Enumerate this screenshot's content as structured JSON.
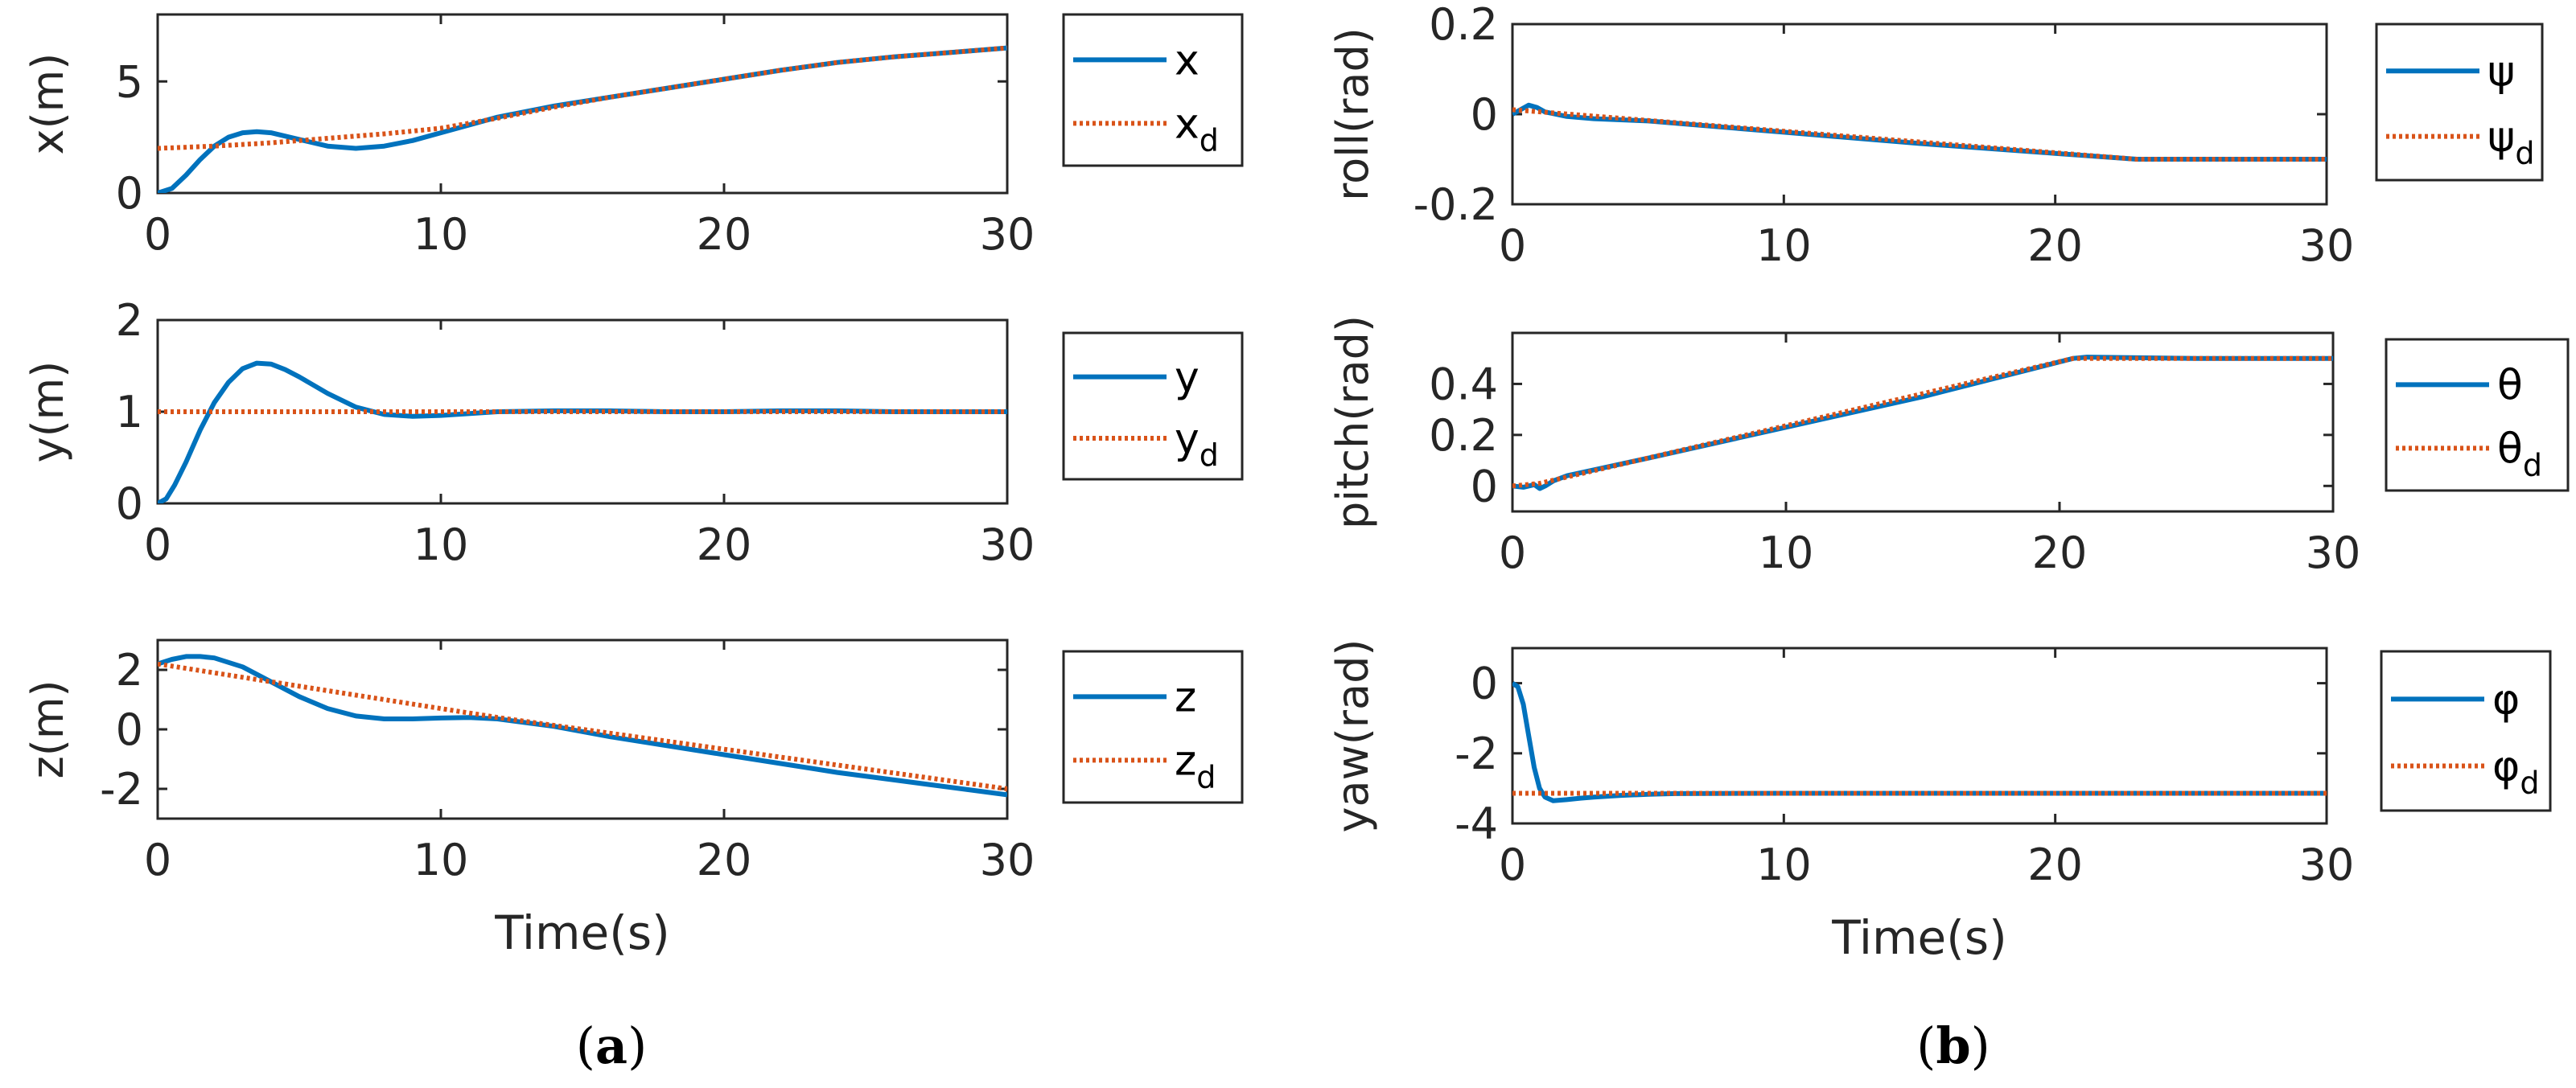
{
  "captions": [
    {
      "open": "(",
      "letter": "a",
      "close": ")"
    },
    {
      "open": "(",
      "letter": "b",
      "close": ")"
    }
  ],
  "colors": {
    "actual": "#0072BD",
    "desired": "#D95319",
    "axis": "#262626"
  },
  "chart_data": [
    {
      "id": "x",
      "type": "line",
      "panel": "a",
      "ylabel": "x(m)",
      "xlabel": "",
      "xlim": [
        0,
        30
      ],
      "ylim": [
        0,
        8
      ],
      "xticks": [
        0,
        10,
        20,
        30
      ],
      "xtick_labels": [
        "0",
        "10",
        "20",
        "30"
      ],
      "yticks": [
        0,
        5
      ],
      "ytick_labels": [
        "0",
        "5"
      ],
      "legend": [
        {
          "label": "x",
          "sub": ""
        },
        {
          "label": "x",
          "sub": "d"
        }
      ],
      "series": [
        {
          "name": "x",
          "style": "solid",
          "x": [
            0,
            0.5,
            1,
            1.5,
            2,
            2.5,
            3,
            3.5,
            4,
            5,
            6,
            7,
            8,
            9,
            10,
            12,
            14,
            16,
            18,
            20,
            22,
            24,
            26,
            28,
            30
          ],
          "y": [
            0,
            0.2,
            0.8,
            1.5,
            2.1,
            2.5,
            2.7,
            2.75,
            2.7,
            2.4,
            2.1,
            2.0,
            2.1,
            2.35,
            2.7,
            3.4,
            3.9,
            4.3,
            4.7,
            5.1,
            5.5,
            5.85,
            6.1,
            6.3,
            6.5
          ]
        },
        {
          "name": "x_d",
          "style": "dotted",
          "x": [
            0,
            2,
            4,
            6,
            8,
            10,
            12,
            14,
            16,
            18,
            20,
            22,
            24,
            26,
            28,
            30
          ],
          "y": [
            2.0,
            2.1,
            2.25,
            2.45,
            2.65,
            2.9,
            3.35,
            3.85,
            4.3,
            4.7,
            5.1,
            5.5,
            5.85,
            6.1,
            6.3,
            6.5
          ]
        }
      ]
    },
    {
      "id": "y",
      "type": "line",
      "panel": "a",
      "ylabel": "y(m)",
      "xlabel": "",
      "xlim": [
        0,
        30
      ],
      "ylim": [
        0,
        2
      ],
      "xticks": [
        0,
        10,
        20,
        30
      ],
      "xtick_labels": [
        "0",
        "10",
        "20",
        "30"
      ],
      "yticks": [
        0,
        1,
        2
      ],
      "ytick_labels": [
        "0",
        "1",
        "2"
      ],
      "legend": [
        {
          "label": "y",
          "sub": ""
        },
        {
          "label": "y",
          "sub": "d"
        }
      ],
      "series": [
        {
          "name": "y",
          "style": "solid",
          "x": [
            0,
            0.3,
            0.6,
            1,
            1.5,
            2,
            2.5,
            3,
            3.5,
            4,
            4.5,
            5,
            6,
            7,
            8,
            9,
            10,
            12,
            14,
            16,
            18,
            20,
            22,
            24,
            26,
            28,
            30
          ],
          "y": [
            0,
            0.05,
            0.2,
            0.45,
            0.8,
            1.1,
            1.32,
            1.47,
            1.53,
            1.52,
            1.46,
            1.38,
            1.2,
            1.05,
            0.97,
            0.95,
            0.96,
            1.0,
            1.01,
            1.01,
            1.0,
            1.0,
            1.01,
            1.01,
            1.0,
            1.0,
            1.0
          ]
        },
        {
          "name": "y_d",
          "style": "dotted",
          "x": [
            0,
            30
          ],
          "y": [
            1,
            1
          ]
        }
      ]
    },
    {
      "id": "z",
      "type": "line",
      "panel": "a",
      "ylabel": "z(m)",
      "xlabel": "Time(s)",
      "xlim": [
        0,
        30
      ],
      "ylim": [
        -3,
        3
      ],
      "xticks": [
        0,
        10,
        20,
        30
      ],
      "xtick_labels": [
        "0",
        "10",
        "20",
        "30"
      ],
      "yticks": [
        -2,
        0,
        2
      ],
      "ytick_labels": [
        "-2",
        "0",
        "2"
      ],
      "legend": [
        {
          "label": "z",
          "sub": ""
        },
        {
          "label": "z",
          "sub": "d"
        }
      ],
      "series": [
        {
          "name": "z",
          "style": "solid",
          "x": [
            0,
            0.5,
            1,
            1.5,
            2,
            3,
            4,
            5,
            6,
            7,
            8,
            9,
            10,
            11,
            12,
            14,
            16,
            18,
            20,
            22,
            24,
            26,
            28,
            30
          ],
          "y": [
            2.2,
            2.35,
            2.45,
            2.45,
            2.4,
            2.1,
            1.6,
            1.1,
            0.7,
            0.45,
            0.35,
            0.35,
            0.38,
            0.4,
            0.35,
            0.1,
            -0.25,
            -0.55,
            -0.85,
            -1.15,
            -1.45,
            -1.7,
            -1.95,
            -2.2
          ]
        },
        {
          "name": "z_d",
          "style": "dotted",
          "x": [
            0,
            12,
            30
          ],
          "y": [
            2.2,
            0.4,
            -2.0
          ]
        }
      ]
    },
    {
      "id": "roll",
      "type": "line",
      "panel": "b",
      "ylabel": "roll(rad)",
      "xlabel": "",
      "xlim": [
        0,
        30
      ],
      "ylim": [
        -0.2,
        0.2
      ],
      "xticks": [
        0,
        10,
        20,
        30
      ],
      "xtick_labels": [
        "0",
        "10",
        "20",
        "30"
      ],
      "yticks": [
        -0.2,
        0,
        0.2
      ],
      "ytick_labels": [
        "-0.2",
        "0",
        "0.2"
      ],
      "legend": [
        {
          "label": "ψ",
          "sub": ""
        },
        {
          "label": "ψ",
          "sub": "d"
        }
      ],
      "series": [
        {
          "name": "ψ",
          "style": "solid",
          "x": [
            0,
            0.3,
            0.6,
            0.9,
            1.2,
            1.6,
            2,
            3,
            5,
            10,
            15,
            20,
            23,
            30
          ],
          "y": [
            0,
            0.01,
            0.02,
            0.015,
            0.005,
            0.0,
            -0.005,
            -0.01,
            -0.015,
            -0.04,
            -0.065,
            -0.087,
            -0.1,
            -0.1
          ]
        },
        {
          "name": "ψ_d",
          "style": "dotted",
          "x": [
            0,
            23,
            30
          ],
          "y": [
            0.01,
            -0.1,
            -0.1
          ]
        }
      ]
    },
    {
      "id": "pitch",
      "type": "line",
      "panel": "b",
      "ylabel": "pitch(rad)",
      "xlabel": "",
      "xlim": [
        0,
        30
      ],
      "ylim": [
        -0.1,
        0.6
      ],
      "xticks": [
        0,
        10,
        20,
        30
      ],
      "xtick_labels": [
        "0",
        "10",
        "20",
        "30"
      ],
      "yticks": [
        0,
        0.2,
        0.4
      ],
      "ytick_labels": [
        "0",
        "0.2",
        "0.4"
      ],
      "legend": [
        {
          "label": "θ",
          "sub": ""
        },
        {
          "label": "θ",
          "sub": "d"
        }
      ],
      "series": [
        {
          "name": "θ",
          "style": "solid",
          "x": [
            0,
            0.4,
            0.8,
            1.0,
            1.2,
            1.5,
            2,
            5,
            10,
            15,
            20.5,
            21,
            25,
            30
          ],
          "y": [
            0,
            -0.005,
            0.005,
            -0.01,
            0.0,
            0.02,
            0.04,
            0.11,
            0.23,
            0.35,
            0.5,
            0.505,
            0.5,
            0.5
          ]
        },
        {
          "name": "θ_d",
          "style": "dotted",
          "x": [
            0,
            1,
            20.5,
            30
          ],
          "y": [
            0,
            0.01,
            0.5,
            0.5
          ]
        }
      ]
    },
    {
      "id": "yaw",
      "type": "line",
      "panel": "b",
      "ylabel": "yaw(rad)",
      "xlabel": "Time(s)",
      "xlim": [
        0,
        30
      ],
      "ylim": [
        -4,
        1
      ],
      "xticks": [
        0,
        10,
        20,
        30
      ],
      "xtick_labels": [
        "0",
        "10",
        "20",
        "30"
      ],
      "yticks": [
        -4,
        -2,
        0
      ],
      "ytick_labels": [
        "-4",
        "-2",
        "0"
      ],
      "legend": [
        {
          "label": "φ",
          "sub": ""
        },
        {
          "label": "φ",
          "sub": "d"
        }
      ],
      "series": [
        {
          "name": "φ",
          "style": "solid",
          "x": [
            0,
            0.2,
            0.4,
            0.6,
            0.8,
            1.0,
            1.2,
            1.5,
            2,
            2.5,
            3,
            4,
            5,
            6,
            10,
            15,
            20,
            25,
            30
          ],
          "y": [
            0,
            -0.1,
            -0.6,
            -1.5,
            -2.4,
            -3.0,
            -3.25,
            -3.35,
            -3.32,
            -3.28,
            -3.25,
            -3.2,
            -3.17,
            -3.15,
            -3.14,
            -3.14,
            -3.14,
            -3.14,
            -3.14
          ]
        },
        {
          "name": "φ_d",
          "style": "dotted",
          "x": [
            0,
            30
          ],
          "y": [
            -3.14,
            -3.14
          ]
        }
      ]
    }
  ]
}
